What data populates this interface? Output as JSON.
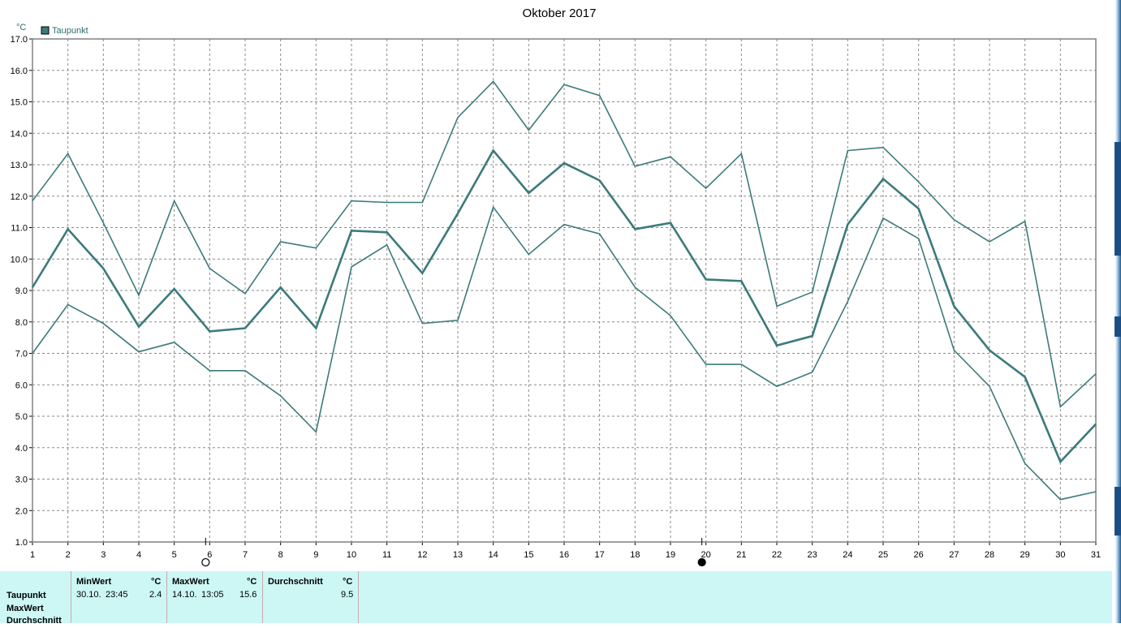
{
  "chart_data": {
    "type": "line",
    "title": "Oktober 2017",
    "ylabel": "°C",
    "ylim": [
      1.0,
      17.0
    ],
    "yticks": [
      "1.0",
      "2.0",
      "3.0",
      "4.0",
      "5.0",
      "6.0",
      "7.0",
      "8.0",
      "9.0",
      "10.0",
      "11.0",
      "12.0",
      "13.0",
      "14.0",
      "15.0",
      "16.0",
      "17.0"
    ],
    "x": [
      1,
      2,
      3,
      4,
      5,
      6,
      7,
      8,
      9,
      10,
      11,
      12,
      13,
      14,
      15,
      16,
      17,
      18,
      19,
      20,
      21,
      22,
      23,
      24,
      25,
      26,
      27,
      28,
      29,
      30,
      31
    ],
    "xticks": [
      "1",
      "2",
      "3",
      "4",
      "5",
      "6",
      "7",
      "8",
      "9",
      "10",
      "11",
      "12",
      "13",
      "14",
      "15",
      "16",
      "17",
      "18",
      "19",
      "20",
      "21",
      "22",
      "23",
      "24",
      "25",
      "26",
      "27",
      "28",
      "29",
      "30",
      "31"
    ],
    "grid": true,
    "legend": "top-left",
    "legend_label": "Taupunkt",
    "color": "#3d7a7a",
    "series": [
      {
        "name": "Taupunkt",
        "role": "max",
        "values": [
          11.85,
          13.35,
          11.15,
          8.85,
          11.85,
          9.7,
          8.9,
          10.55,
          10.35,
          11.85,
          11.8,
          11.8,
          14.5,
          15.65,
          14.1,
          15.55,
          15.2,
          12.95,
          13.25,
          12.25,
          13.35,
          8.5,
          8.95,
          13.45,
          13.55,
          12.45,
          11.25,
          10.55,
          11.2,
          5.3,
          6.35
        ]
      },
      {
        "name": "Taupunkt",
        "role": "avg",
        "values": [
          9.1,
          10.95,
          9.7,
          7.85,
          9.05,
          7.7,
          7.8,
          9.1,
          7.8,
          10.9,
          10.85,
          9.55,
          11.45,
          13.45,
          12.1,
          13.05,
          12.5,
          10.95,
          11.15,
          9.35,
          9.3,
          7.25,
          7.55,
          11.1,
          12.55,
          11.6,
          8.5,
          7.1,
          6.25,
          3.55,
          4.75
        ]
      },
      {
        "name": "Taupunkt",
        "role": "min",
        "values": [
          7.0,
          8.55,
          7.95,
          7.05,
          7.35,
          6.45,
          6.45,
          5.65,
          4.5,
          9.75,
          10.45,
          7.95,
          8.05,
          11.65,
          10.15,
          11.1,
          10.8,
          9.1,
          8.2,
          6.65,
          6.65,
          5.95,
          6.4,
          8.65,
          11.3,
          10.65,
          7.1,
          5.95,
          3.5,
          2.35,
          2.6
        ]
      }
    ],
    "moon_markers": [
      {
        "day": 6,
        "phase": "full"
      },
      {
        "day": 20,
        "phase": "new"
      }
    ]
  },
  "stats": {
    "row_labels": [
      "Taupunkt",
      "MaxWert",
      "Durchschnitt"
    ],
    "min": {
      "header": "MinWert",
      "unit": "°C",
      "date": "30.10.",
      "time": "23:45",
      "value": "2.4"
    },
    "max": {
      "header": "MaxWert",
      "unit": "°C",
      "date": "14.10.",
      "time": "13:05",
      "value": "15.6"
    },
    "avg": {
      "header": "Durchschnitt",
      "unit": "°C",
      "value": "9.5"
    }
  }
}
